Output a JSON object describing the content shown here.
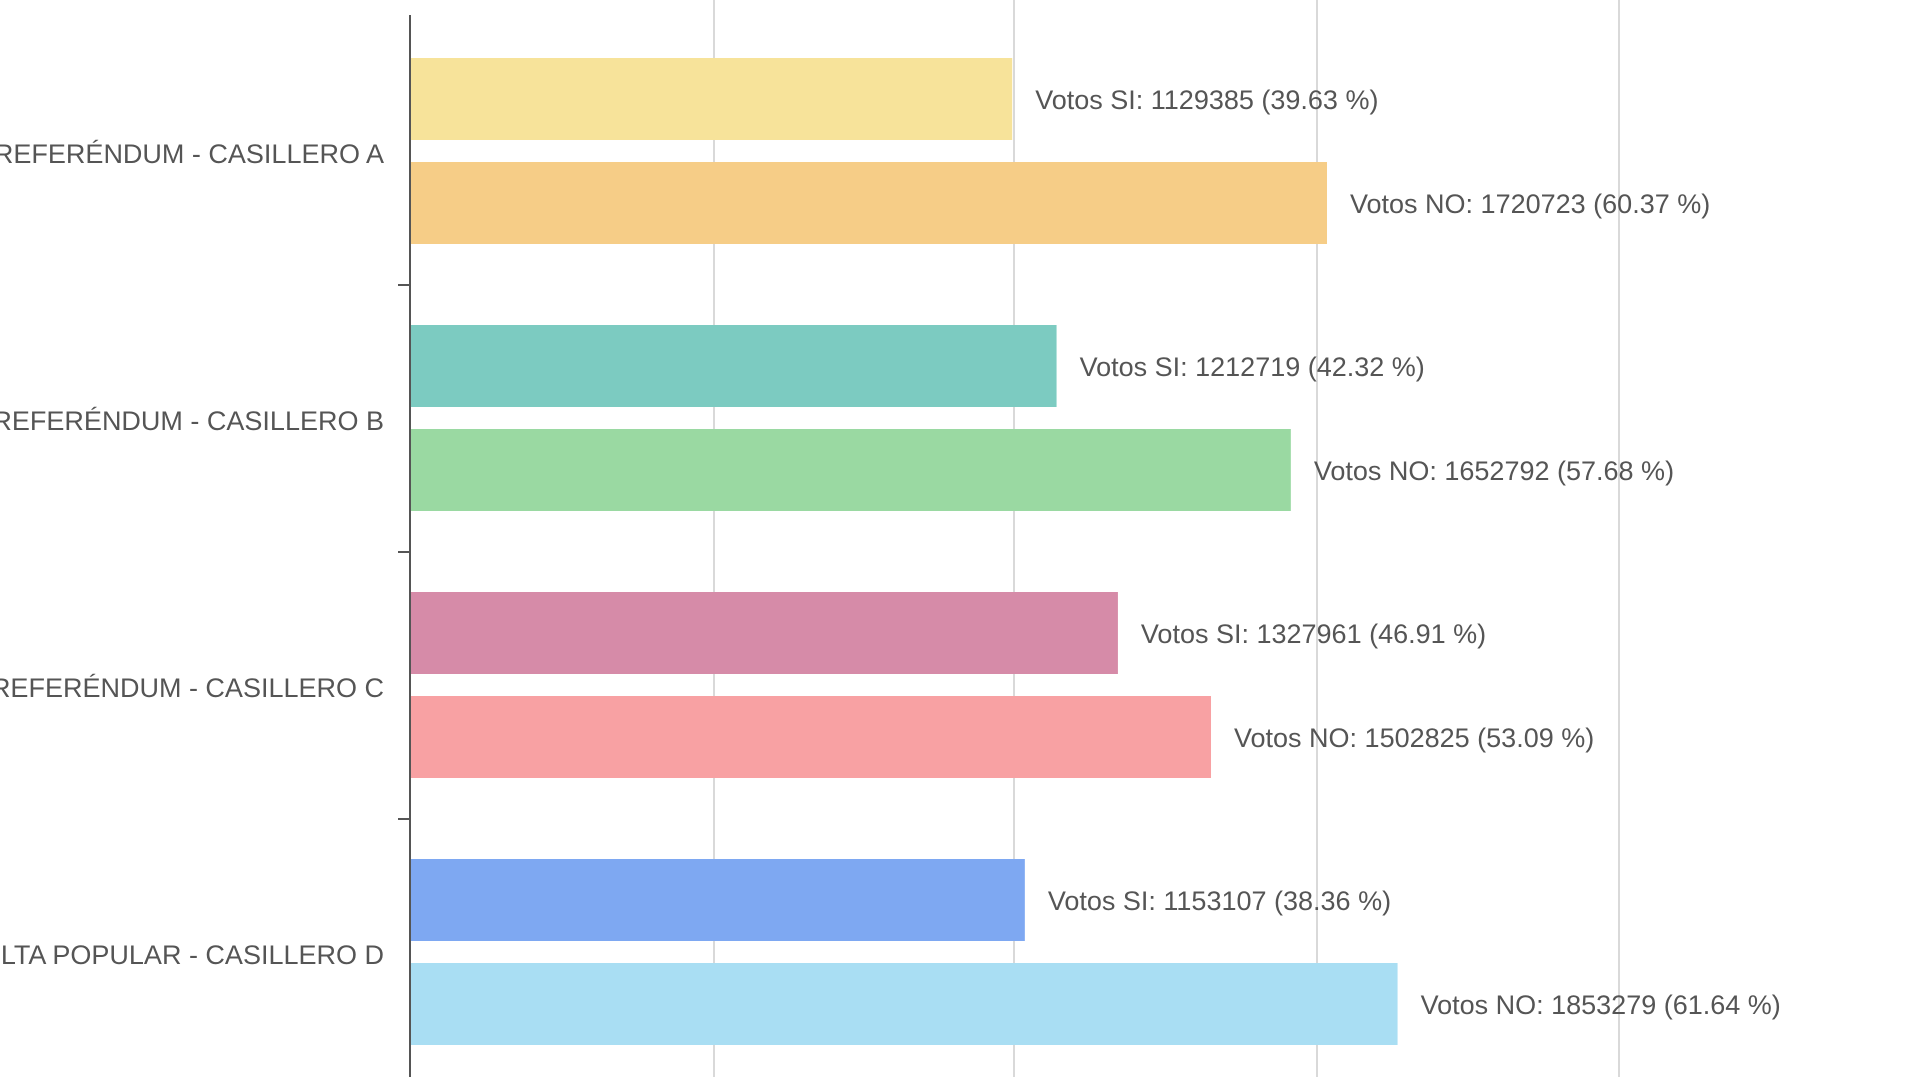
{
  "chart_data": {
    "type": "bar",
    "orientation": "horizontal",
    "categories": [
      "REFERÉNDUM - CASILLERO A",
      "REFERÉNDUM - CASILLERO B",
      "REFERÉNDUM - CASILLERO C",
      "ULTA POPULAR - CASILLERO D"
    ],
    "grid": true,
    "legend": "none",
    "xlim": [
      0,
      2400000
    ],
    "groups": [
      {
        "category": "REFERÉNDUM - CASILLERO A",
        "bars": [
          {
            "series": "Votos SI",
            "value": 1129385,
            "percent": 39.63,
            "color": "#f7e39a",
            "label": "Votos SI: 1129385 (39.63 %)"
          },
          {
            "series": "Votos NO",
            "value": 1720723,
            "percent": 60.37,
            "color": "#f6cd87",
            "label": "Votos NO: 1720723 (60.37 %)"
          }
        ]
      },
      {
        "category": "REFERÉNDUM - CASILLERO B",
        "bars": [
          {
            "series": "Votos SI",
            "value": 1212719,
            "percent": 42.32,
            "color": "#7ccbc1",
            "label": "Votos SI: 1212719 (42.32 %)"
          },
          {
            "series": "Votos NO",
            "value": 1652792,
            "percent": 57.68,
            "color": "#9ad9a2",
            "label": "Votos NO: 1652792 (57.68 %)"
          }
        ]
      },
      {
        "category": "REFERÉNDUM - CASILLERO C",
        "bars": [
          {
            "series": "Votos SI",
            "value": 1327961,
            "percent": 46.91,
            "color": "#d68ba8",
            "label": "Votos SI: 1327961 (46.91 %)"
          },
          {
            "series": "Votos NO",
            "value": 1502825,
            "percent": 53.09,
            "color": "#f8a1a3",
            "label": "Votos NO: 1502825 (53.09 %)"
          }
        ]
      },
      {
        "category": "ULTA POPULAR - CASILLERO D",
        "bars": [
          {
            "series": "Votos SI",
            "value": 1153107,
            "percent": 38.36,
            "color": "#7ea8f2",
            "label": "Votos SI: 1153107 (38.36 %)"
          },
          {
            "series": "Votos NO",
            "value": 1853279,
            "percent": 61.64,
            "color": "#a9def3",
            "label": "Votos NO: 1853279 (61.64 %)"
          }
        ]
      }
    ]
  }
}
